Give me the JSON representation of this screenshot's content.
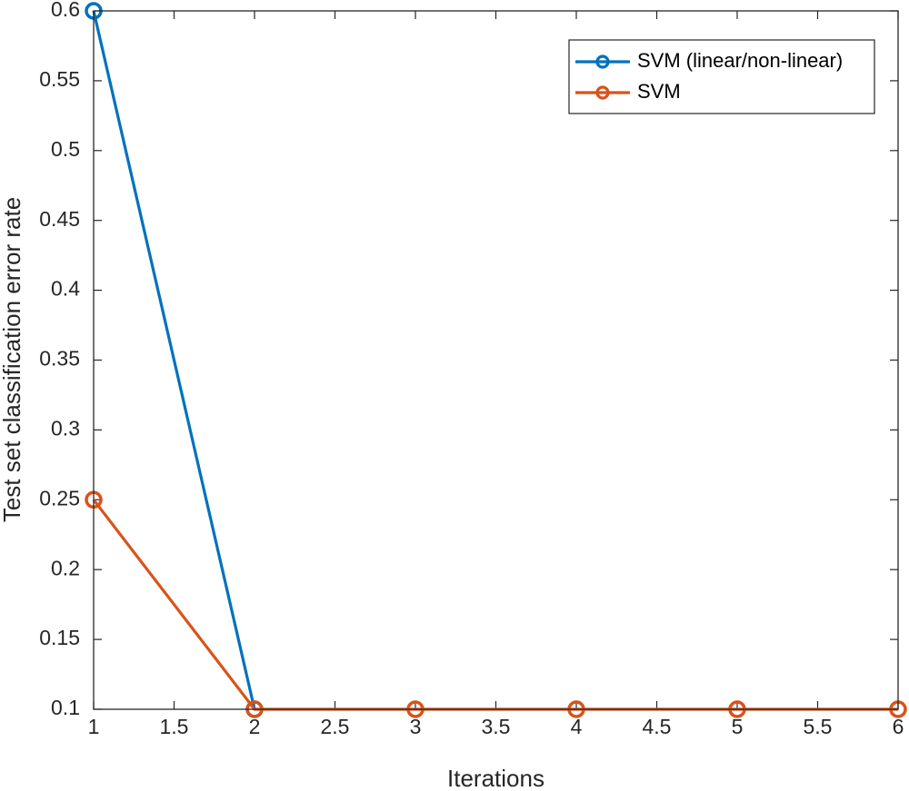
{
  "chart_data": {
    "type": "line",
    "title": "",
    "xlabel": "Iterations",
    "ylabel": "Test set classification error rate",
    "xlim": [
      1,
      6
    ],
    "ylim": [
      0.1,
      0.6
    ],
    "xticks": [
      "1",
      "1.5",
      "2",
      "2.5",
      "3",
      "3.5",
      "4",
      "4.5",
      "5",
      "5.5",
      "6"
    ],
    "yticks": [
      "0.1",
      "0.15",
      "0.2",
      "0.25",
      "0.3",
      "0.35",
      "0.4",
      "0.45",
      "0.5",
      "0.55",
      "0.6"
    ],
    "grid": false,
    "legend_position": "top-right",
    "series": [
      {
        "name": "SVM (linear/non-linear)",
        "color": "#0072BD",
        "marker": "circle",
        "x": [
          1,
          2
        ],
        "y": [
          0.6,
          0.1
        ]
      },
      {
        "name": "SVM",
        "color": "#D95319",
        "marker": "circle",
        "x": [
          1,
          2,
          3,
          4,
          5,
          6
        ],
        "y": [
          0.25,
          0.1,
          0.1,
          0.1,
          0.1,
          0.1
        ]
      }
    ]
  }
}
